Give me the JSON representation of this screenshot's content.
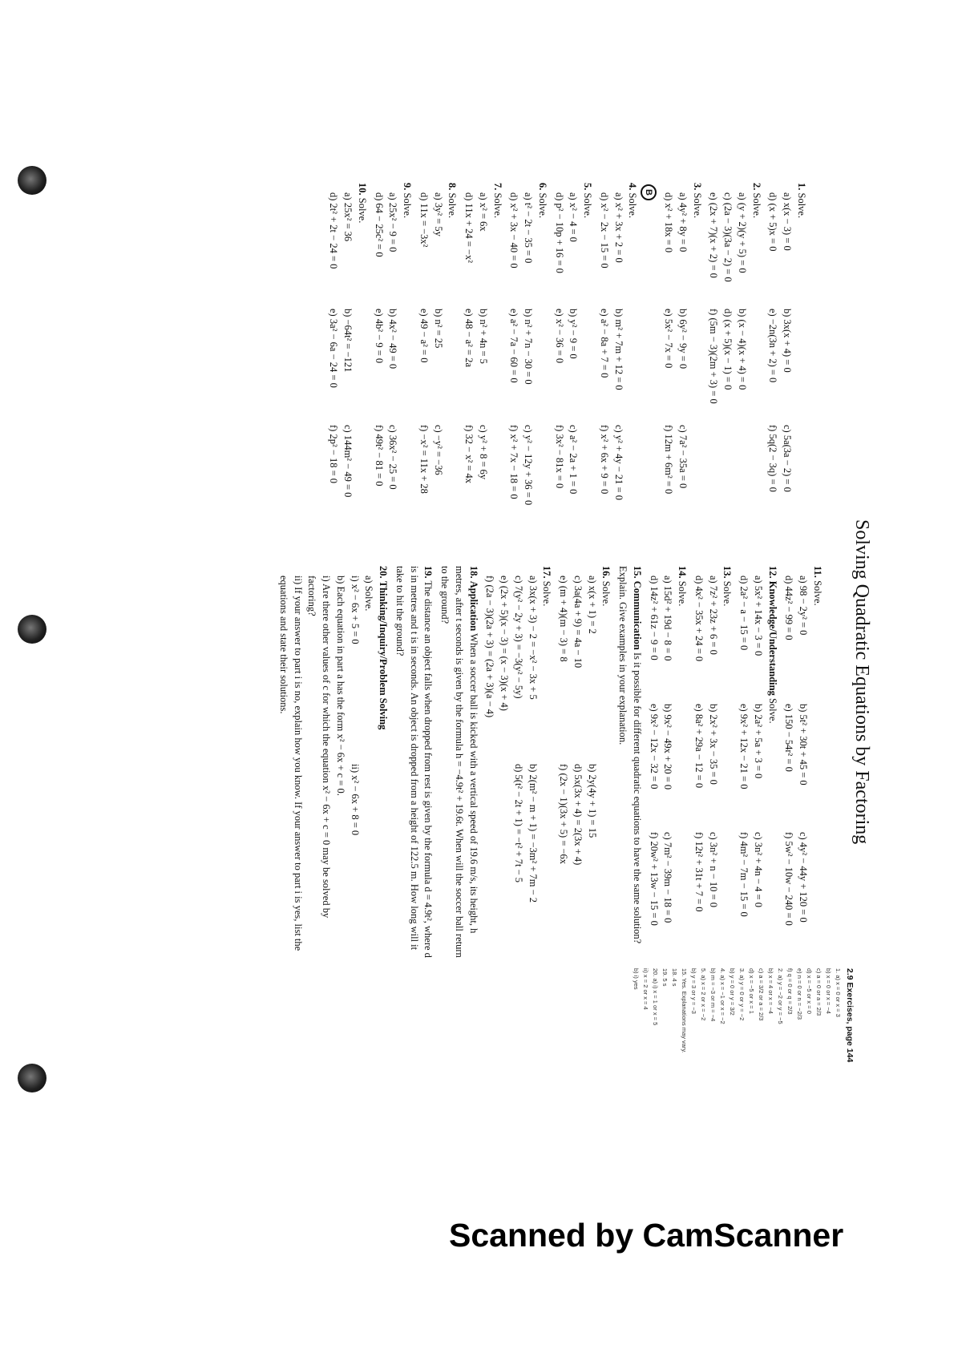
{
  "title": "Solving Quadratic Equations by Factoring",
  "left": [
    {
      "number": "1.",
      "heading": "Solve.",
      "lines": [
        [
          "a) x(x − 3) = 0",
          "b) 3x(x + 4) = 0",
          "c) 5a(3a − 2) = 0"
        ],
        [
          "d) (x + 5)x = 0",
          "e) −2n(3n + 2) = 0",
          "f) 5q(2 − 3q) = 0"
        ]
      ]
    },
    {
      "number": "2.",
      "heading": "Solve.",
      "lines": [
        [
          "a) (y + 2)(y + 5) = 0",
          "b) (x − 4)(x + 4) = 0"
        ],
        [
          "c) (2a − 3)(3a − 2) = 0",
          "d) (x + 5)(x − 1) = 0"
        ],
        [
          "e) (2x + 7)(x + 2) = 0",
          "f) (5m − 3)(2m + 3) = 0"
        ]
      ]
    },
    {
      "number": "3.",
      "heading": "Solve.",
      "lines": [
        [
          "a) 4y² + 8y = 0",
          "b) 6y² − 9y = 0",
          "c) 7a² − 35a = 0"
        ],
        [
          "d) x² + 18x = 0",
          "e) 5x² − 7x = 0",
          "f) 12m + 6m² = 0"
        ]
      ]
    },
    {
      "marker": "B",
      "number": "4.",
      "heading": "Solve.",
      "lines": [
        [
          "a) x² + 3x + 2 = 0",
          "b) m² + 7m + 12 = 0",
          "c) y² + 4y − 21 = 0"
        ],
        [
          "d) x² − 2x − 15 = 0",
          "e) a² − 8a + 7 = 0",
          "f) x² + 6x + 9 = 0"
        ]
      ]
    },
    {
      "number": "5.",
      "heading": "Solve.",
      "lines": [
        [
          "a) x² − 4 = 0",
          "b) y² − 9 = 0",
          "c) a² − 2a + 1 = 0"
        ],
        [
          "d) p² − 10p + 16 = 0",
          "e) x² − 36 = 0",
          "f) 3x² − 81x = 0"
        ]
      ]
    },
    {
      "number": "6.",
      "heading": "Solve.",
      "lines": [
        [
          "a) t² − 2t − 35 = 0",
          "b) n² + 7n − 30 = 0",
          "c) y² − 12y + 36 = 0"
        ],
        [
          "d) x² + 3x − 40 = 0",
          "e) a² − 7a − 60 = 0",
          "f) x² + 7x − 18 = 0"
        ]
      ]
    },
    {
      "number": "7.",
      "heading": "Solve.",
      "lines": [
        [
          "a) x² = 6x",
          "b) n² + 4n = 5",
          "c) y² + 8 = 6y"
        ],
        [
          "d) 11x + 24 = −x²",
          "e) 48 − a² = 2a",
          "f) 32 − x² = 4x"
        ]
      ]
    },
    {
      "number": "8.",
      "heading": "Solve.",
      "lines": [
        [
          "a) 3y² = 5y",
          "b) n² = 25",
          "c) −y² = −36"
        ],
        [
          "d) 11x = −3x²",
          "e) 49 − a² = 0",
          "f) −x² = 11x + 28"
        ]
      ]
    },
    {
      "number": "9.",
      "heading": "Solve.",
      "lines": [
        [
          "a) 25x² − 9 = 0",
          "b) 4x² − 49 = 0",
          "c) 36x² − 25 = 0"
        ],
        [
          "d) 64 − 25c² = 0",
          "e) 4b² − 9 = 0",
          "f) 49t² − 81 = 0"
        ]
      ]
    },
    {
      "number": "10.",
      "heading": "Solve.",
      "lines": [
        [
          "a) 25x² = 36",
          "b) −64t² = −121",
          "c) 144m² − 49 = 0"
        ],
        [
          "d) 2t² + 2t − 24 = 0",
          "e) 3a² − 6a − 24 = 0",
          "f) 2p² − 18 = 0"
        ]
      ]
    }
  ],
  "middle": [
    {
      "number": "11.",
      "heading": "Solve.",
      "lines": [
        [
          "a) 98 − 2y² = 0",
          "b) 5t² + 30t + 45 = 0",
          "c) 4y² − 44y + 120 = 0"
        ],
        [
          "d) 44z² − 99 = 0",
          "e) 150 − 54r² = 0",
          "f) 5w² − 10w − 240 = 0"
        ]
      ]
    },
    {
      "number": "12.",
      "label": "Knowledge/Understanding",
      "heading": "Solve.",
      "lines": [
        [
          "a) 5x² + 14x − 3 = 0",
          "b) 2a² + 5a + 3 = 0",
          "c) 3n² + 4n − 4 = 0"
        ],
        [
          "d) 2a² − a − 15 = 0",
          "e) 9x² + 12x − 21 = 0",
          "f) 4m² − 7m − 15 = 0"
        ]
      ]
    },
    {
      "number": "13.",
      "heading": "Solve.",
      "lines": [
        [
          "a) 7z² + 23z + 6 = 0",
          "b) 2x² + 3x − 35 = 0",
          "c) 3n² + n − 10 = 0"
        ],
        [
          "d) 4x² − 35x + 24 = 0",
          "e) 8a² + 29a − 12 = 0",
          "f) 12t² + 31t + 7 = 0"
        ]
      ]
    },
    {
      "number": "14.",
      "heading": "Solve.",
      "lines": [
        [
          "a) 15d² + 19d − 8 = 0",
          "b) 9x² − 49x + 20 = 0",
          "c) 7m² − 39m − 18 = 0"
        ],
        [
          "d) 14z² + 61z − 9 = 0",
          "e) 9x² − 12x − 32 = 0",
          "f) 20w² + 13w − 15 = 0"
        ]
      ]
    },
    {
      "number": "15.",
      "label": "Communication",
      "heading": "Is it possible for different quadratic equations to have the same solution? Explain. Give examples in your explanation."
    },
    {
      "number": "16.",
      "heading": "Solve.",
      "lines": [
        [
          "a) x(x + 1) = 2",
          "b) 2y(4y + 1) = 15"
        ],
        [
          "c) 3a(4a + 9) = 4a − 10",
          "d) 5x(3x + 4) = 2(3x + 4)"
        ],
        [
          "e) (m + 4)(m − 3) = 8",
          "f) (2x − 1)(3x + 5) = −6x"
        ]
      ]
    },
    {
      "number": "17.",
      "heading": "Solve.",
      "lines": [
        [
          "a) 3x(x + 3) − 2 = −x² − 3x + 5",
          "b) 2(m² − m + 1) = −3m² + 7m − 2"
        ],
        [
          "c) 7(y² − 2y + 3) = −3(y² − 5y)",
          "d) 5(t² − 2t + 1) = −t² + 7t − 5"
        ],
        "e) (2x + 5)(x − 3) = (x − 3)(x + 4)",
        "f) (2a − 3)(2a + 3) = (2a + 3)(a − 4)"
      ]
    },
    {
      "number": "18.",
      "label": "Application",
      "heading": "When a soccer ball is kicked with a vertical speed of 19.6 m/s, its height, h metres, after t seconds is given by the formula h = −4.9t² + 19.6t. When will the soccer ball return to the ground?"
    },
    {
      "number": "19.",
      "heading": "The distance an object falls when dropped from rest is given by the formula d = 4.9t², where d is in metres and t is in seconds. An object is dropped from a height of 122.5 m. How long will it take to hit the ground?"
    },
    {
      "number": "20.",
      "label": "Thinking/Inquiry/Problem Solving",
      "lines": [
        "a) Solve.",
        [
          "i) x² − 6x + 5 = 0",
          "ii) x² − 6x + 8 = 0"
        ],
        "b) Each equation in part a has the form x² − 6x + c = 0.",
        "i) Are there other values of c for which the equation x² − 6x + c = 0 may be solved by factoring?",
        "ii) If your answer to part i is no, explain how you know. If your answer to part i is yes, list the equations and state their solutions."
      ]
    }
  ],
  "answers": {
    "heading": "2.9 Exercises, page 144",
    "items": [
      "1. a) x = 0 or x = 3",
      "b) x = 0 or x = −4",
      "c) a = 0 or a = 2/3",
      "d) x = −5 or x = 0",
      "e) n = 0 or n = −2/3",
      "f) q = 0 or q = 2/3",
      "2. a) y = −2 or y = −5",
      "b) x = 4 or x = −4",
      "c) a = 3/2 or a = 2/3",
      "d) x = −5 or x = 1",
      "3. a) y = 0 or y = −2",
      "b) y = 0 or y = 3/2",
      "4. a) x = −1 or x = −2",
      "b) m = −3 or m = −4",
      "5. a) x = 2 or x = −2",
      "b) y = 3 or y = −3",
      "15. Yes. Explanations may vary.",
      "18. 4 s",
      "19. 5 s",
      "20. a) i) x = 1 or x = 5",
      "ii) x = 2 or x = 4",
      "b) i) yes"
    ]
  },
  "footer": "Scanned by CamScanner"
}
